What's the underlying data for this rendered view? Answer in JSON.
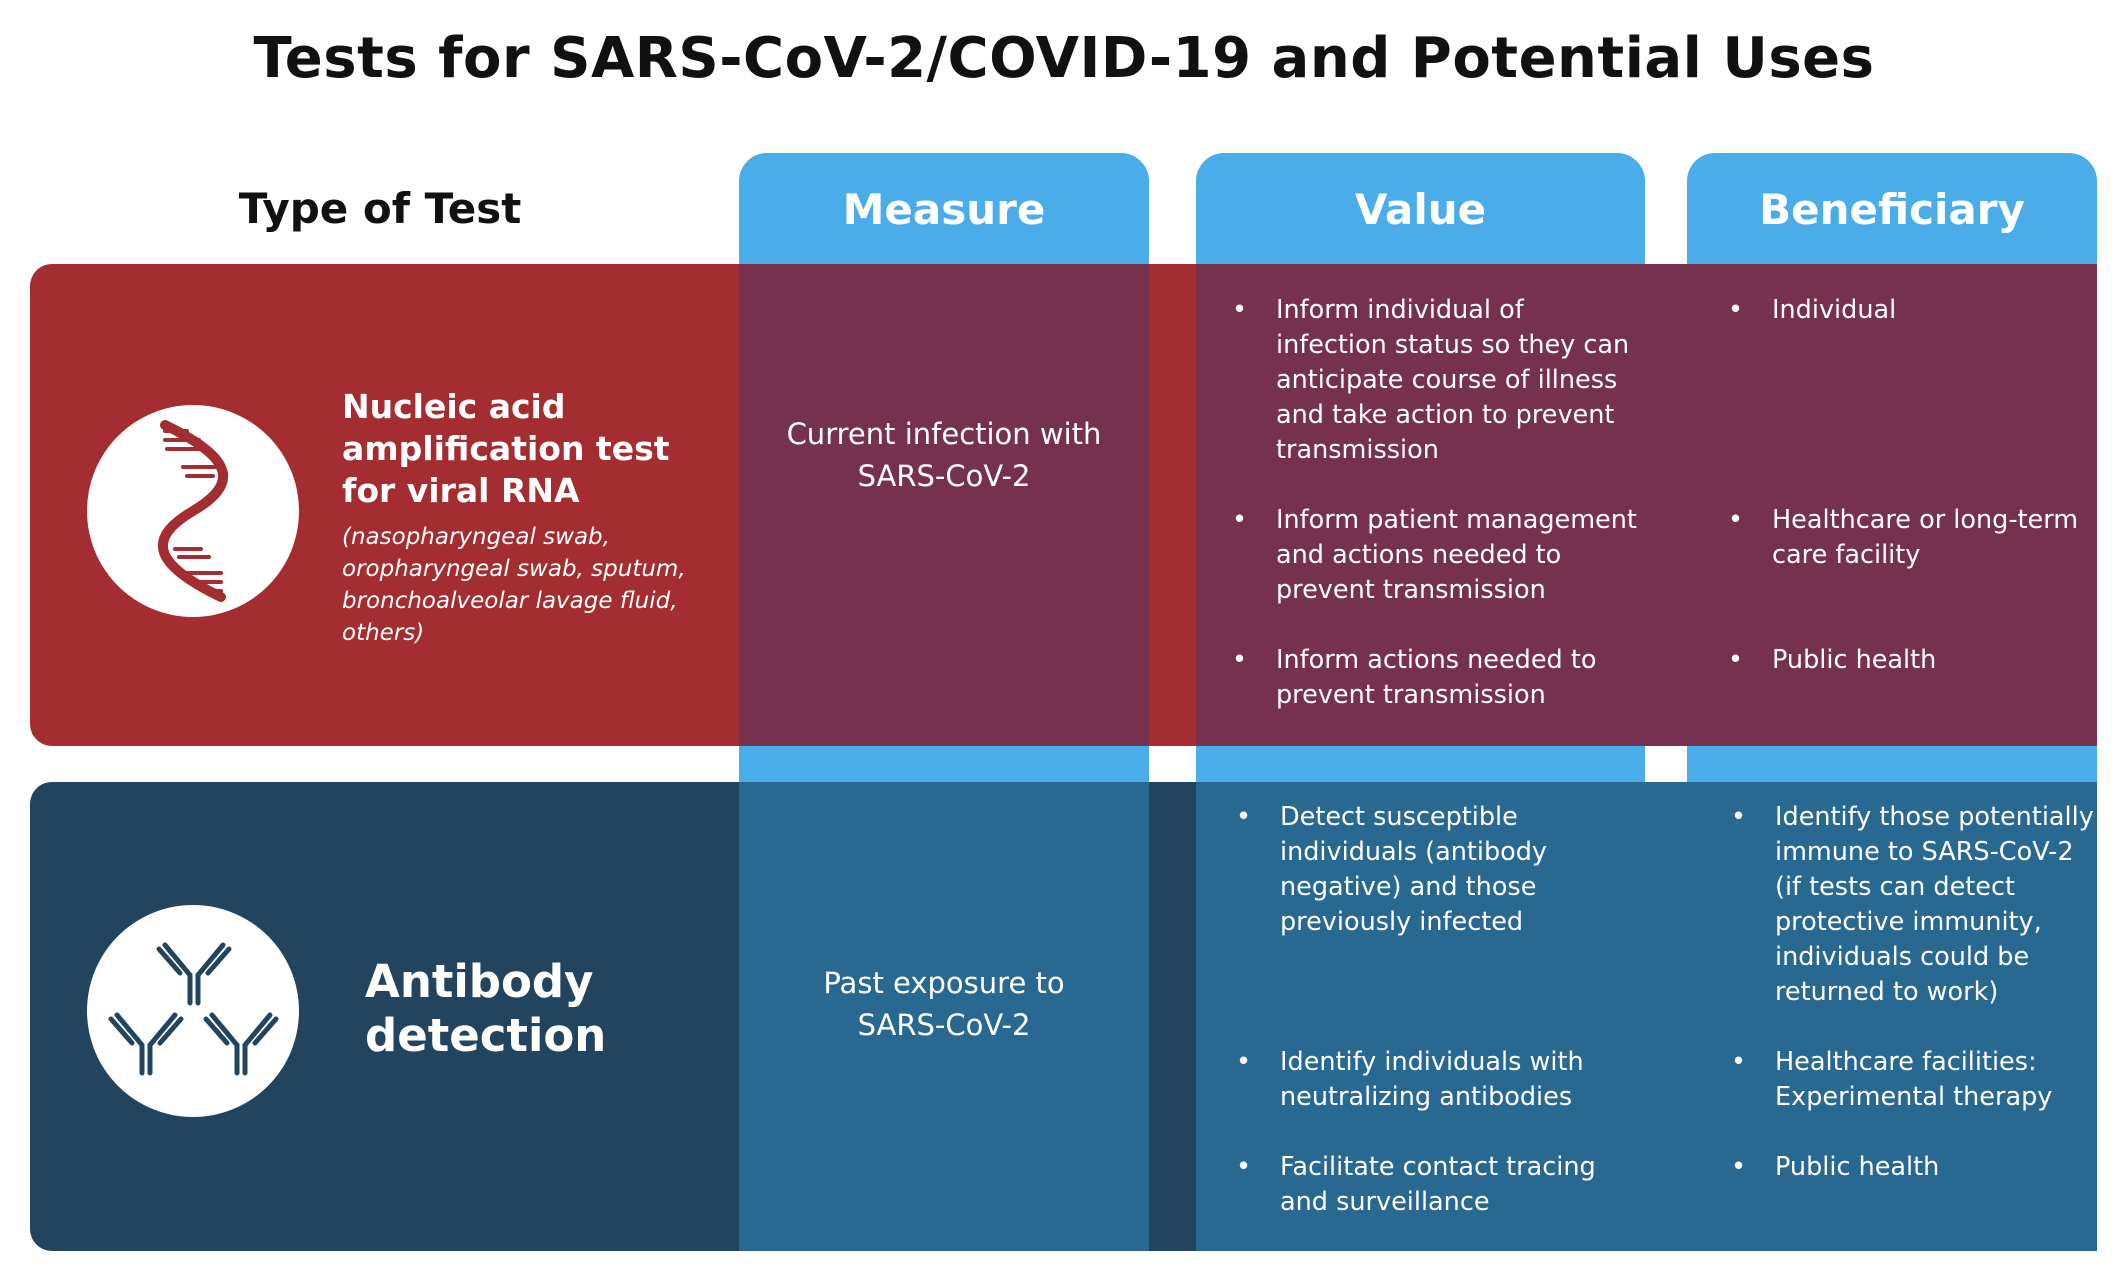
{
  "title": "Tests for SARS-CoV-2/COVID-19 and Potential Uses",
  "headers": {
    "type_of_test": "Type of Test",
    "measure": "Measure",
    "value": "Value",
    "beneficiary": "Beneficiary"
  },
  "colors": {
    "header_blue": "#4aace9",
    "row1_red": "#a32d30",
    "row1_purple": "#76314e",
    "row2_navy": "#23445f",
    "row2_blue": "#296890"
  },
  "rows": [
    {
      "icon": "dna-helix-icon",
      "title_lines": [
        "Nucleic acid",
        "amplification test",
        "for viral RNA"
      ],
      "subtitle_lines": [
        "(nasopharyngeal swab,",
        "oropharyngeal swab, sputum,",
        "bronchoalveolar lavage fluid,",
        "others)"
      ],
      "measure_lines": [
        "Current infection with",
        "SARS-CoV-2"
      ],
      "values": [
        [
          "Inform individual of",
          "infection status so they can",
          "anticipate course of illness",
          "and take action to prevent",
          "transmission"
        ],
        [
          "Inform patient management",
          "and actions needed to",
          "prevent transmission"
        ],
        [
          "Inform actions needed to",
          "prevent transmission"
        ]
      ],
      "beneficiaries": [
        [
          "Individual"
        ],
        [
          "Healthcare or long-term",
          "care facility"
        ],
        [
          "Public health"
        ]
      ]
    },
    {
      "icon": "antibody-icon",
      "title_lines": [
        "Antibody",
        "detection"
      ],
      "subtitle_lines": [],
      "measure_lines": [
        "Past exposure to",
        "SARS-CoV-2"
      ],
      "values": [
        [
          "Detect susceptible",
          "individuals (antibody",
          "negative) and those",
          "previously infected"
        ],
        [
          "Identify individuals with",
          "neutralizing antibodies"
        ],
        [
          "Facilitate contact tracing",
          "and surveillance"
        ]
      ],
      "beneficiaries": [
        [
          "Identify those potentially",
          "immune to SARS-CoV-2",
          "(if tests can detect",
          "protective immunity,",
          "individuals could be",
          "returned to work)"
        ],
        [
          "Healthcare facilities:",
          "Experimental therapy"
        ],
        [
          "Public health"
        ]
      ]
    }
  ]
}
